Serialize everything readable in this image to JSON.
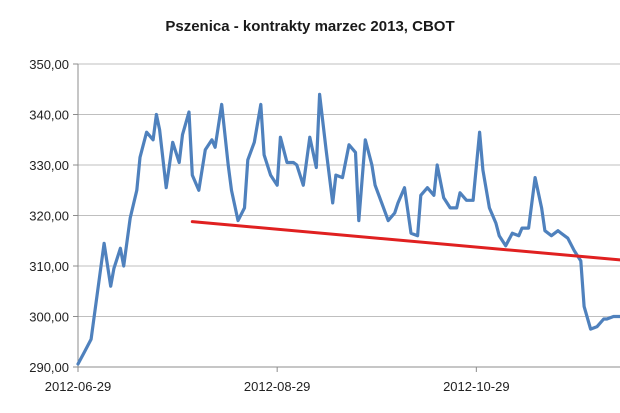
{
  "chart_data": {
    "type": "line",
    "title": "Pszenica - kontrakty marzec 2013, CBOT",
    "xlabel": "",
    "ylabel": "",
    "ylim": [
      290,
      350
    ],
    "y_ticks": [
      "290,00",
      "300,00",
      "310,00",
      "320,00",
      "330,00",
      "340,00",
      "350,00"
    ],
    "x_tick_labels": [
      "2012-06-29",
      "2012-08-29",
      "2012-10-29"
    ],
    "x_range": [
      "2012-06-29",
      "2012-12-12"
    ],
    "grid": true,
    "legend": "none",
    "series": [
      {
        "color": "#4f81bd",
        "x": [
          "2012-06-29",
          "2012-07-01",
          "2012-07-03",
          "2012-07-05",
          "2012-07-07",
          "2012-07-09",
          "2012-07-10",
          "2012-07-12",
          "2012-07-13",
          "2012-07-15",
          "2012-07-17",
          "2012-07-18",
          "2012-07-20",
          "2012-07-22",
          "2012-07-23",
          "2012-07-24",
          "2012-07-26",
          "2012-07-28",
          "2012-07-30",
          "2012-07-31",
          "2012-08-02",
          "2012-08-03",
          "2012-08-05",
          "2012-08-07",
          "2012-08-09",
          "2012-08-10",
          "2012-08-12",
          "2012-08-14",
          "2012-08-15",
          "2012-08-17",
          "2012-08-19",
          "2012-08-20",
          "2012-08-22",
          "2012-08-24",
          "2012-08-25",
          "2012-08-27",
          "2012-08-29",
          "2012-08-30",
          "2012-09-01",
          "2012-09-03",
          "2012-09-04",
          "2012-09-06",
          "2012-09-08",
          "2012-09-10",
          "2012-09-11",
          "2012-09-13",
          "2012-09-15",
          "2012-09-16",
          "2012-09-18",
          "2012-09-20",
          "2012-09-22",
          "2012-09-23",
          "2012-09-25",
          "2012-09-27",
          "2012-09-28",
          "2012-09-30",
          "2012-10-02",
          "2012-10-04",
          "2012-10-05",
          "2012-10-07",
          "2012-10-09",
          "2012-10-11",
          "2012-10-12",
          "2012-10-14",
          "2012-10-16",
          "2012-10-17",
          "2012-10-19",
          "2012-10-21",
          "2012-10-23",
          "2012-10-24",
          "2012-10-26",
          "2012-10-28",
          "2012-10-30",
          "2012-10-31",
          "2012-11-02",
          "2012-11-04",
          "2012-11-05",
          "2012-11-07",
          "2012-11-09",
          "2012-11-11",
          "2012-11-12",
          "2012-11-14",
          "2012-11-16",
          "2012-11-18",
          "2012-11-19",
          "2012-11-21",
          "2012-11-23",
          "2012-11-24",
          "2012-11-26",
          "2012-11-28",
          "2012-11-30",
          "2012-12-01",
          "2012-12-03",
          "2012-12-05",
          "2012-12-07",
          "2012-12-08",
          "2012-12-10",
          "2012-12-12"
        ],
        "values": [
          290.6,
          293.0,
          295.5,
          305.0,
          314.5,
          306.0,
          309.5,
          313.5,
          310.0,
          319.5,
          325.0,
          331.5,
          336.5,
          335.0,
          340.0,
          337.0,
          325.5,
          334.5,
          330.5,
          336.0,
          340.5,
          328.0,
          325.0,
          333.0,
          335.0,
          333.5,
          342.0,
          330.0,
          325.0,
          319.0,
          321.5,
          331.0,
          334.5,
          342.0,
          332.0,
          328.0,
          326.0,
          335.5,
          330.5,
          330.5,
          330.0,
          326.0,
          335.5,
          329.5,
          344.0,
          333.0,
          322.5,
          328.0,
          327.5,
          334.0,
          332.5,
          319.0,
          335.0,
          330.0,
          326.0,
          322.5,
          319.0,
          320.5,
          322.5,
          325.5,
          316.5,
          316.0,
          324.0,
          325.5,
          324.0,
          330.0,
          323.5,
          321.5,
          321.5,
          324.5,
          323.0,
          323.0,
          336.5,
          329.0,
          321.5,
          318.5,
          316.0,
          314.0,
          316.5,
          316.0,
          317.5,
          317.5,
          327.5,
          321.5,
          317.0,
          316.0,
          317.0,
          316.5,
          315.5,
          313.0,
          311.0,
          302.0,
          297.5,
          298.0,
          299.5,
          299.5,
          300.0,
          300.0
        ]
      },
      {
        "color": "#e02020",
        "x": [
          "2012-08-03",
          "2012-12-12"
        ],
        "values": [
          318.8,
          311.2
        ]
      }
    ]
  }
}
